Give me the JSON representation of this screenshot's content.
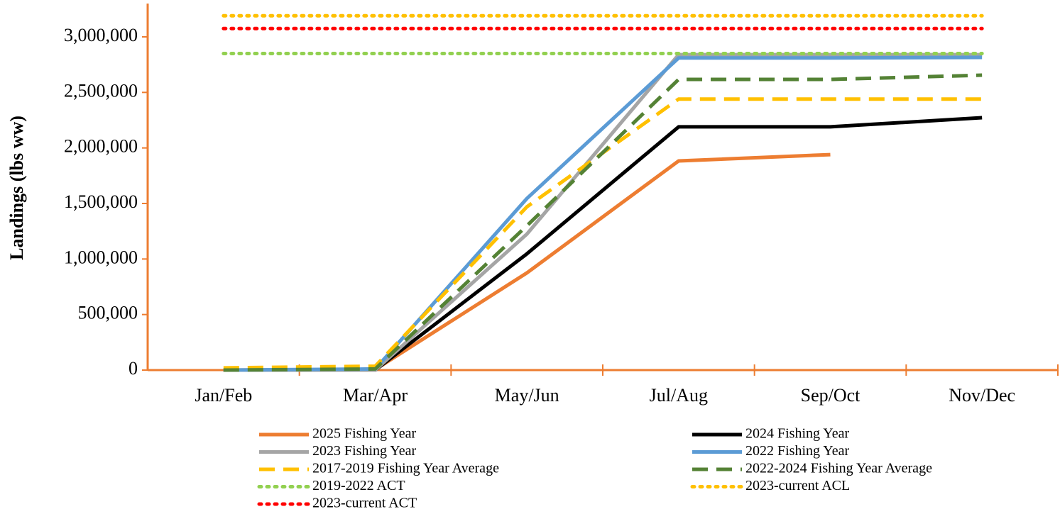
{
  "chart_data": {
    "type": "line",
    "y_label": "Landings (lbs ww)",
    "categories": [
      "Jan/Feb",
      "Mar/Apr",
      "May/Jun",
      "Jul/Aug",
      "Sep/Oct",
      "Nov/Dec"
    ],
    "ylim": [
      0,
      3300000
    ],
    "yticks": [
      0,
      {
        "value": 500000,
        "label": "500,000"
      },
      {
        "value": 1000000,
        "label": "1,000,000"
      },
      {
        "value": 1500000,
        "label": "1,500,000"
      },
      {
        "value": 2000000,
        "label": "2,000,000"
      },
      {
        "value": 2500000,
        "label": "2,500,000"
      },
      {
        "value": 3000000,
        "label": "3,000,000"
      }
    ],
    "axis_color": "#ed7d31",
    "series": [
      {
        "name": "2025 Fishing Year",
        "color": "#ed7d31",
        "dash": "solid",
        "values": [
          0,
          5000,
          875000,
          1883000,
          1940000,
          null
        ]
      },
      {
        "name": "2024 Fishing Year",
        "color": "#000000",
        "dash": "solid",
        "values": [
          0,
          0,
          1047000,
          2190000,
          2190000,
          2272000
        ]
      },
      {
        "name": "2023 Fishing Year",
        "color": "#a5a5a5",
        "dash": "solid",
        "values": [
          0,
          0,
          1225000,
          2840000,
          2840000,
          2840000
        ]
      },
      {
        "name": "2022 Fishing Year",
        "color": "#5b9bd5",
        "dash": "solid",
        "values": [
          0,
          10000,
          1545000,
          2810000,
          2810000,
          2815000
        ]
      },
      {
        "name": "2017-2019 Fishing Year Average",
        "color": "#ffc000",
        "dash": "dash",
        "values": [
          20000,
          35000,
          1470000,
          2440000,
          2440000,
          2440000
        ]
      },
      {
        "name": "2022-2024 Fishing Year Average",
        "color": "#548235",
        "dash": "dash",
        "values": [
          0,
          10000,
          1300000,
          2617000,
          2617000,
          2655000
        ]
      },
      {
        "name": "2019-2022 ACT",
        "color": "#92d050",
        "dash": "dot",
        "values": [
          2850000,
          2850000,
          2850000,
          2850000,
          2850000,
          2850000
        ]
      },
      {
        "name": "2023-current ACL",
        "color": "#ffc000",
        "dash": "dot",
        "values": [
          3190000,
          3190000,
          3190000,
          3190000,
          3190000,
          3190000
        ]
      },
      {
        "name": "2023-current ACT",
        "color": "#ff0000",
        "dash": "dot",
        "values": [
          3075000,
          3075000,
          3075000,
          3075000,
          3075000,
          3075000
        ]
      }
    ]
  }
}
